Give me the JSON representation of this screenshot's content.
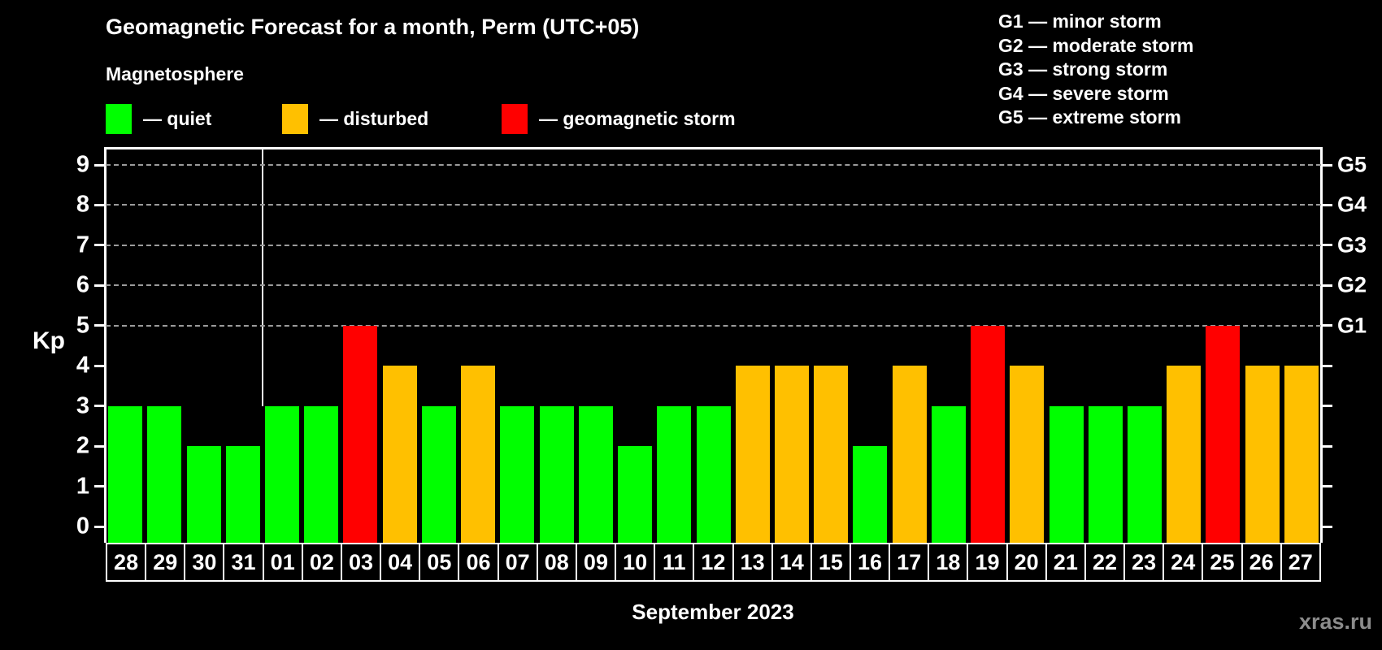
{
  "title": "Geomagnetic Forecast for a month, Perm (UTC+05)",
  "subtitle": "Magnetosphere",
  "legend": {
    "items": [
      {
        "key": "quiet",
        "label": "— quiet"
      },
      {
        "key": "disturbed",
        "label": "— disturbed"
      },
      {
        "key": "storm",
        "label": "— geomagnetic storm"
      }
    ]
  },
  "storm_scale_legend": [
    "G1 — minor storm",
    "G2 — moderate storm",
    "G3 — strong storm",
    "G4 — severe storm",
    "G5 — extreme storm"
  ],
  "axes": {
    "y_title": "Kp",
    "y_ticks": [
      0,
      1,
      2,
      3,
      4,
      5,
      6,
      7,
      8,
      9
    ],
    "right_labels": [
      {
        "kp": 5,
        "label": "G1"
      },
      {
        "kp": 6,
        "label": "G2"
      },
      {
        "kp": 7,
        "label": "G3"
      },
      {
        "kp": 8,
        "label": "G4"
      },
      {
        "kp": 9,
        "label": "G5"
      }
    ],
    "x_label": "September 2023"
  },
  "watermark": "xras.ru",
  "colors": {
    "quiet": "#00ff00",
    "disturbed": "#ffc000",
    "storm": "#ff0000",
    "background": "#000000",
    "axis": "#ffffff",
    "grid": "#9b9b9b",
    "watermark": "#8c8c8c"
  },
  "chart_data": {
    "type": "bar",
    "title": "Geomagnetic Forecast for a month, Perm (UTC+05)",
    "xlabel": "September 2023",
    "ylabel": "Kp",
    "ylim": [
      0,
      9
    ],
    "grid": "horizontal dashed lines at Kp 5-9 (G1-G5)",
    "legend_position": "top",
    "gridlines_kp": [
      5,
      6,
      7,
      8,
      9
    ],
    "month_separator_after_index": 3,
    "categories": [
      "28",
      "29",
      "30",
      "31",
      "01",
      "02",
      "03",
      "04",
      "05",
      "06",
      "07",
      "08",
      "09",
      "10",
      "11",
      "12",
      "13",
      "14",
      "15",
      "16",
      "17",
      "18",
      "19",
      "20",
      "21",
      "22",
      "23",
      "24",
      "25",
      "26",
      "27"
    ],
    "series": [
      {
        "name": "Kp forecast",
        "values": [
          3,
          3,
          2,
          2,
          3,
          3,
          5,
          4,
          3,
          4,
          3,
          3,
          3,
          2,
          3,
          3,
          4,
          4,
          4,
          2,
          4,
          3,
          5,
          4,
          3,
          3,
          3,
          4,
          5,
          4,
          4
        ]
      }
    ],
    "statuses": [
      "quiet",
      "quiet",
      "quiet",
      "quiet",
      "quiet",
      "quiet",
      "storm",
      "disturbed",
      "quiet",
      "disturbed",
      "quiet",
      "quiet",
      "quiet",
      "quiet",
      "quiet",
      "quiet",
      "disturbed",
      "disturbed",
      "disturbed",
      "quiet",
      "disturbed",
      "quiet",
      "storm",
      "disturbed",
      "quiet",
      "quiet",
      "quiet",
      "disturbed",
      "storm",
      "disturbed",
      "disturbed"
    ]
  }
}
